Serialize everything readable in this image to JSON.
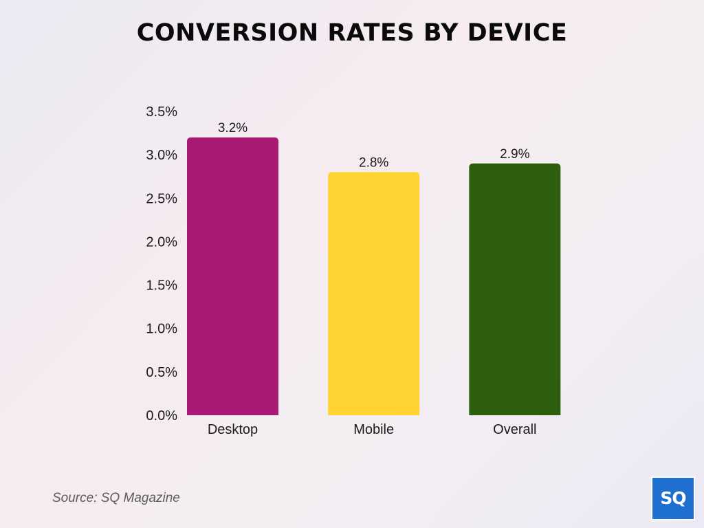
{
  "header": {
    "title": "CONVERSION RATES BY DEVICE"
  },
  "footer": {
    "source": "Source: SQ Magazine",
    "logo_text": "SQ"
  },
  "colors": {
    "text": "#1a1a1a",
    "logo_bg": "#1f6fd0"
  },
  "chart_data": {
    "type": "bar",
    "title": "CONVERSION RATES BY DEVICE",
    "categories": [
      "Desktop",
      "Mobile",
      "Overall"
    ],
    "values": [
      3.2,
      2.8,
      2.9
    ],
    "value_labels": [
      "3.2%",
      "2.8%",
      "2.9%"
    ],
    "colors": [
      "#a91a74",
      "#ffd332",
      "#2e5e10"
    ],
    "xlabel": "",
    "ylabel": "",
    "ylim": [
      0,
      3.5
    ],
    "yticks": [
      0.0,
      0.5,
      1.0,
      1.5,
      2.0,
      2.5,
      3.0,
      3.5
    ],
    "ytick_labels": [
      "0.0%",
      "0.5%",
      "1.0%",
      "1.5%",
      "2.0%",
      "2.5%",
      "3.0%",
      "3.5%"
    ],
    "grid": false,
    "legend": "none"
  }
}
